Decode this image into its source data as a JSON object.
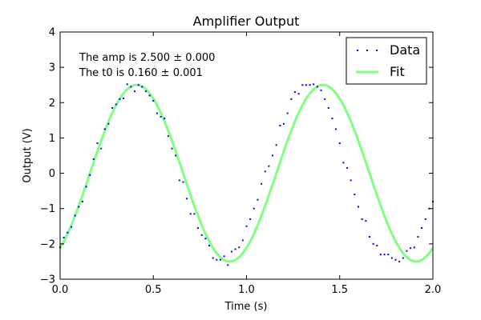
{
  "chart_data": {
    "type": "scatter",
    "title": "Amplifier Output",
    "xlabel": "Time (s)",
    "ylabel": "Output (V)",
    "xlim": [
      0.0,
      2.0
    ],
    "ylim": [
      -3,
      4
    ],
    "x_ticks": [
      {
        "value": 0.0,
        "label": "0.0"
      },
      {
        "value": 0.5,
        "label": "0.5"
      },
      {
        "value": 1.0,
        "label": "1.0"
      },
      {
        "value": 1.5,
        "label": "1.5"
      },
      {
        "value": 2.0,
        "label": "2.0"
      }
    ],
    "y_ticks": [
      {
        "value": -3,
        "label": "−3"
      },
      {
        "value": -2,
        "label": "−2"
      },
      {
        "value": -1,
        "label": "−1"
      },
      {
        "value": 0,
        "label": "0"
      },
      {
        "value": 1,
        "label": "1"
      },
      {
        "value": 2,
        "label": "2"
      },
      {
        "value": 3,
        "label": "3"
      },
      {
        "value": 4,
        "label": "4"
      }
    ],
    "grid": false,
    "legend_position": "top-right",
    "annotations": [
      "The amp is 2.500 ± 0.000",
      "The t0 is 0.160 ± 0.001"
    ],
    "series": [
      {
        "name": "Data",
        "style": "points",
        "color": "#0000ff",
        "x": [
          0.0,
          0.02,
          0.04,
          0.06,
          0.08,
          0.1,
          0.12,
          0.14,
          0.16,
          0.18,
          0.2,
          0.22,
          0.24,
          0.26,
          0.28,
          0.3,
          0.32,
          0.34,
          0.36,
          0.38,
          0.4,
          0.42,
          0.44,
          0.46,
          0.48,
          0.5,
          0.52,
          0.54,
          0.56,
          0.58,
          0.6,
          0.62,
          0.64,
          0.66,
          0.68,
          0.7,
          0.72,
          0.74,
          0.76,
          0.78,
          0.8,
          0.82,
          0.84,
          0.86,
          0.88,
          0.9,
          0.92,
          0.94,
          0.96,
          0.98,
          1.0,
          1.02,
          1.04,
          1.06,
          1.08,
          1.1,
          1.12,
          1.14,
          1.16,
          1.18,
          1.2,
          1.22,
          1.24,
          1.26,
          1.28,
          1.3,
          1.32,
          1.34,
          1.36,
          1.38,
          1.4,
          1.42,
          1.44,
          1.46,
          1.48,
          1.5,
          1.52,
          1.54,
          1.56,
          1.58,
          1.6,
          1.62,
          1.64,
          1.66,
          1.68,
          1.7,
          1.72,
          1.74,
          1.76,
          1.78,
          1.8,
          1.82,
          1.84,
          1.86,
          1.88,
          1.9,
          1.92,
          1.94,
          1.96,
          1.98,
          2.0
        ],
        "y": [
          -2.1,
          -1.82,
          -1.68,
          -1.52,
          -1.2,
          -0.95,
          -0.8,
          -0.38,
          -0.05,
          0.4,
          0.85,
          0.7,
          1.25,
          1.4,
          1.85,
          1.95,
          2.1,
          2.12,
          2.52,
          2.45,
          2.32,
          2.5,
          2.45,
          2.32,
          2.2,
          2.05,
          1.7,
          1.6,
          1.55,
          1.05,
          0.7,
          0.5,
          -0.2,
          -0.25,
          -0.72,
          -1.15,
          -1.15,
          -1.55,
          -1.75,
          -1.85,
          -2.05,
          -2.4,
          -2.45,
          -2.45,
          -2.35,
          -2.6,
          -2.22,
          -2.15,
          -2.1,
          -1.9,
          -1.5,
          -1.3,
          -1.0,
          -0.75,
          -0.3,
          0.05,
          0.2,
          0.5,
          0.8,
          1.35,
          1.4,
          1.7,
          2.1,
          2.3,
          2.25,
          2.5,
          2.5,
          2.5,
          2.52,
          2.45,
          2.35,
          2.1,
          1.85,
          1.55,
          1.25,
          0.85,
          0.3,
          0.15,
          -0.2,
          -0.6,
          -0.95,
          -1.3,
          -1.35,
          -1.8,
          -2.0,
          -2.05,
          -2.3,
          -2.3,
          -2.3,
          -2.4,
          -2.45,
          -2.5,
          -2.4,
          -2.2,
          -2.12,
          -2.1,
          -1.8,
          -1.55,
          -1.3,
          -1.0,
          -0.8
        ]
      },
      {
        "name": "Fit",
        "style": "line",
        "color": "#80ff80",
        "model": "sine",
        "amplitude": 2.5,
        "period": 1.0,
        "t0": 0.16
      }
    ]
  }
}
